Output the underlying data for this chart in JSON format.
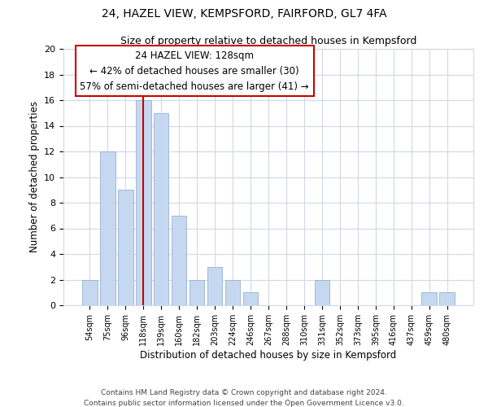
{
  "title1": "24, HAZEL VIEW, KEMPSFORD, FAIRFORD, GL7 4FA",
  "title2": "Size of property relative to detached houses in Kempsford",
  "xlabel": "Distribution of detached houses by size in Kempsford",
  "ylabel": "Number of detached properties",
  "bar_labels": [
    "54sqm",
    "75sqm",
    "96sqm",
    "118sqm",
    "139sqm",
    "160sqm",
    "182sqm",
    "203sqm",
    "224sqm",
    "246sqm",
    "267sqm",
    "288sqm",
    "310sqm",
    "331sqm",
    "352sqm",
    "373sqm",
    "395sqm",
    "416sqm",
    "437sqm",
    "459sqm",
    "480sqm"
  ],
  "bar_values": [
    2,
    12,
    9,
    16,
    15,
    7,
    2,
    3,
    2,
    1,
    0,
    0,
    0,
    2,
    0,
    0,
    0,
    0,
    0,
    1,
    1
  ],
  "bar_color": "#c5d8f0",
  "bar_edge_color": "#a0b8d8",
  "vline_x_idx": 3,
  "vline_color": "#cc0000",
  "annotation_title": "24 HAZEL VIEW: 128sqm",
  "annotation_line1": "← 42% of detached houses are smaller (30)",
  "annotation_line2": "57% of semi-detached houses are larger (41) →",
  "annotation_box_color": "#ffffff",
  "annotation_box_edge": "#cc0000",
  "ylim": [
    0,
    20
  ],
  "yticks": [
    0,
    2,
    4,
    6,
    8,
    10,
    12,
    14,
    16,
    18,
    20
  ],
  "footer1": "Contains HM Land Registry data © Crown copyright and database right 2024.",
  "footer2": "Contains public sector information licensed under the Open Government Licence v3.0.",
  "bg_color": "#ffffff",
  "grid_color": "#d0d8e8"
}
